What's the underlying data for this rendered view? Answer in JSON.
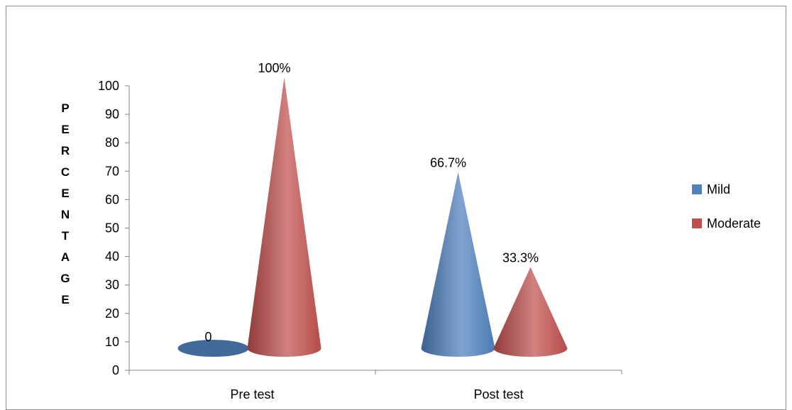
{
  "chart_data": {
    "type": "bar",
    "subtype": "3d-cone",
    "categories": [
      "Pre test",
      "Post test"
    ],
    "series": [
      {
        "name": "Mild",
        "color": "#4f81bd",
        "values": [
          0,
          66.7
        ],
        "labels": [
          "0",
          "66.7%"
        ]
      },
      {
        "name": "Moderate",
        "color": "#c0504d",
        "values": [
          100,
          33.3
        ],
        "labels": [
          "100%",
          "33.3%"
        ]
      }
    ],
    "ylabel": "PERCENTAGE",
    "ylim": [
      0,
      100
    ],
    "yticks": [
      0,
      10,
      20,
      30,
      40,
      50,
      60,
      70,
      80,
      90,
      100
    ],
    "grid": false,
    "legend_position": "right"
  }
}
